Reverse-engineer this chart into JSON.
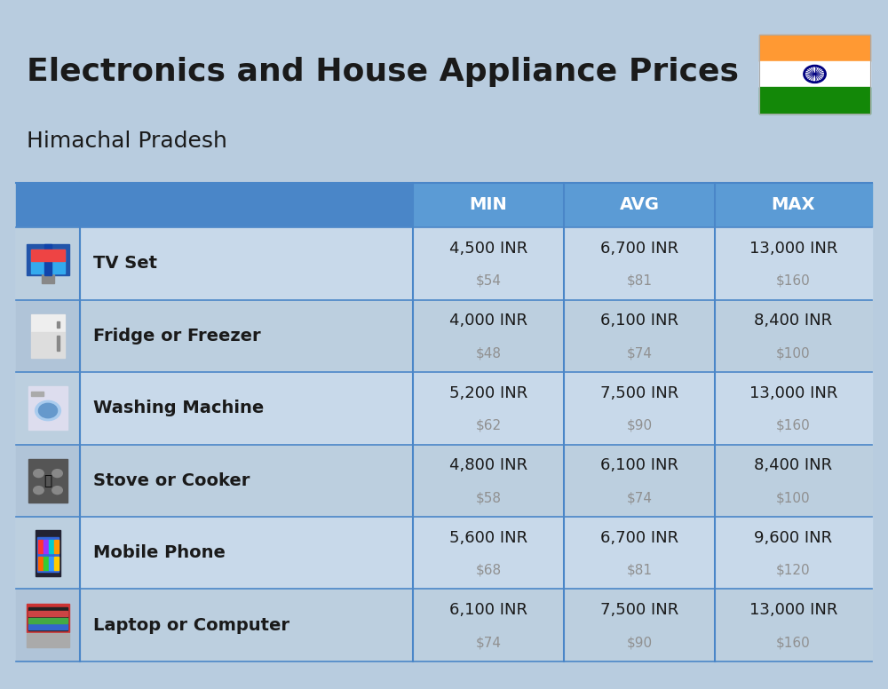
{
  "title": "Electronics and House Appliance Prices",
  "subtitle": "Himachal Pradesh",
  "bg_color": "#b8ccdf",
  "header_bg_left": "#4a86c8",
  "header_bg_right": "#5b9bd5",
  "header_text_color": "#ffffff",
  "row_bg_even": "#c8d9ea",
  "row_bg_odd": "#bccfdf",
  "icon_col_bg_even": "#bccfdf",
  "icon_col_bg_odd": "#b0c4d8",
  "divider_color": "#4a86c8",
  "text_color_dark": "#1a1a1a",
  "text_color_usd": "#909090",
  "col_headers": [
    "MIN",
    "AVG",
    "MAX"
  ],
  "items": [
    {
      "name": "TV Set",
      "min_inr": "4,500 INR",
      "min_usd": "$54",
      "avg_inr": "6,700 INR",
      "avg_usd": "$81",
      "max_inr": "13,000 INR",
      "max_usd": "$160"
    },
    {
      "name": "Fridge or Freezer",
      "min_inr": "4,000 INR",
      "min_usd": "$48",
      "avg_inr": "6,100 INR",
      "avg_usd": "$74",
      "max_inr": "8,400 INR",
      "max_usd": "$100"
    },
    {
      "name": "Washing Machine",
      "min_inr": "5,200 INR",
      "min_usd": "$62",
      "avg_inr": "7,500 INR",
      "avg_usd": "$90",
      "max_inr": "13,000 INR",
      "max_usd": "$160"
    },
    {
      "name": "Stove or Cooker",
      "min_inr": "4,800 INR",
      "min_usd": "$58",
      "avg_inr": "6,100 INR",
      "avg_usd": "$74",
      "max_inr": "8,400 INR",
      "max_usd": "$100"
    },
    {
      "name": "Mobile Phone",
      "min_inr": "5,600 INR",
      "min_usd": "$68",
      "avg_inr": "6,700 INR",
      "avg_usd": "$81",
      "max_inr": "9,600 INR",
      "max_usd": "$120"
    },
    {
      "name": "Laptop or Computer",
      "min_inr": "6,100 INR",
      "min_usd": "$74",
      "avg_inr": "7,500 INR",
      "avg_usd": "$90",
      "max_inr": "13,000 INR",
      "max_usd": "$160"
    }
  ],
  "icon_texts": [
    "📺",
    "📦",
    "📦",
    "🔥",
    "📱",
    "💻"
  ],
  "flag_orange": "#FF9933",
  "flag_white": "#FFFFFF",
  "flag_green": "#138808",
  "flag_chakra": "#000080"
}
